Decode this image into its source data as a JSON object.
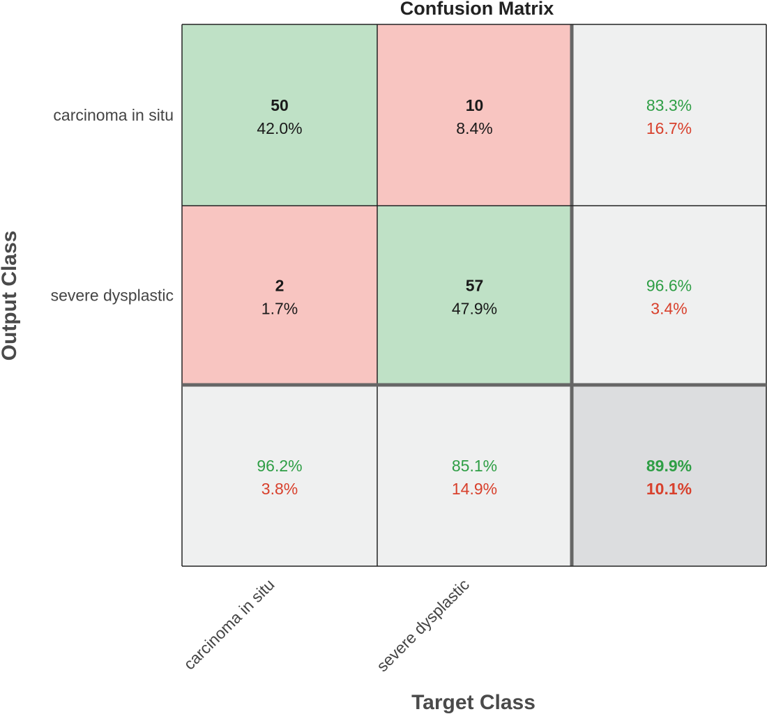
{
  "chart_data": {
    "type": "heatmap",
    "title": "Confusion Matrix",
    "xlabel": "Target Class",
    "ylabel": "Output Class",
    "classes": [
      "carcinoma in situ",
      "severe dysplastic"
    ],
    "matrix": [
      [
        {
          "count": "50",
          "percent": "42.0%"
        },
        {
          "count": "10",
          "percent": "8.4%"
        }
      ],
      [
        {
          "count": "2",
          "percent": "1.7%"
        },
        {
          "count": "57",
          "percent": "47.9%"
        }
      ]
    ],
    "row_summary": [
      {
        "correct": "83.3%",
        "incorrect": "16.7%"
      },
      {
        "correct": "96.6%",
        "incorrect": "3.4%"
      }
    ],
    "column_summary": [
      {
        "correct": "96.2%",
        "incorrect": "3.8%"
      },
      {
        "correct": "85.1%",
        "incorrect": "14.9%"
      }
    ],
    "overall": {
      "correct": "89.9%",
      "incorrect": "10.1%"
    }
  },
  "colors": {
    "correct_cell": "#bfe1c6",
    "incorrect_cell": "#f8c5c1",
    "summary_cell": "#eff0f0",
    "overall_cell": "#dcdddf",
    "good_text": "#2e9e45",
    "bad_text": "#d8402c"
  }
}
